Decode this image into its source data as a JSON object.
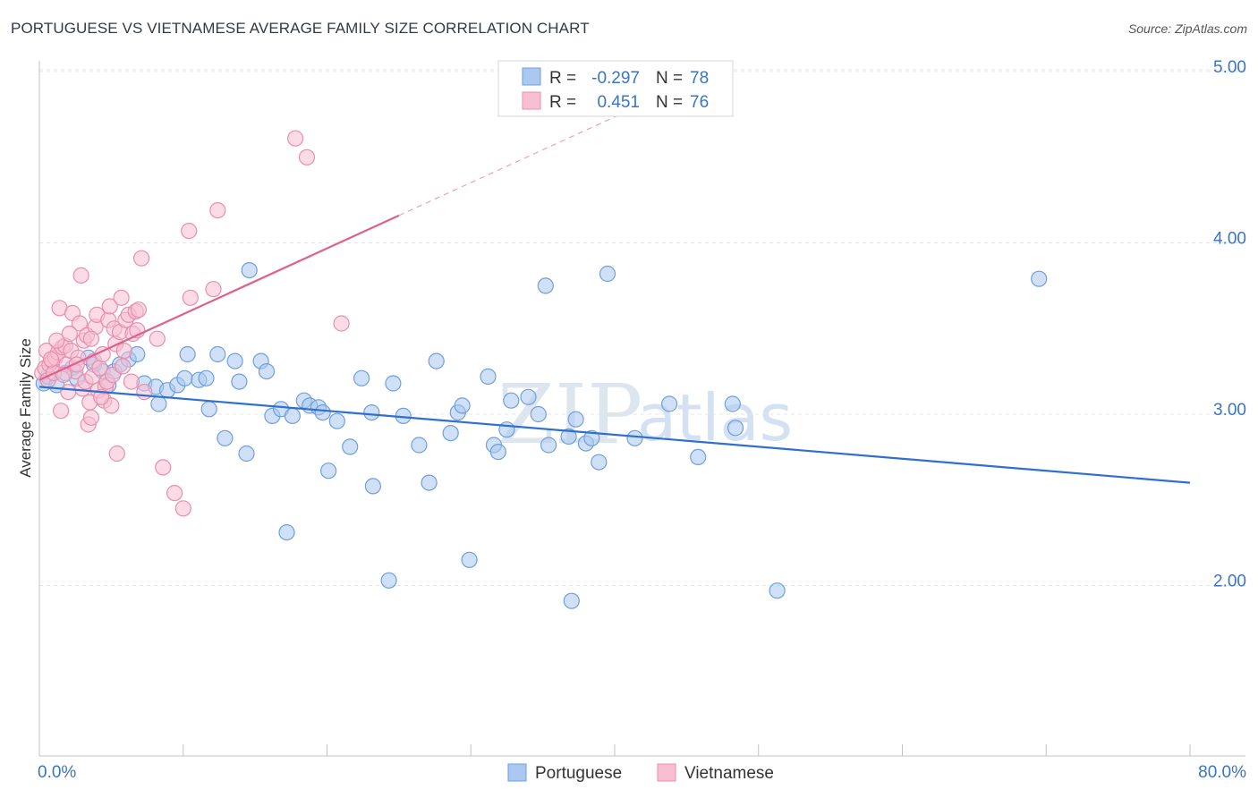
{
  "title": "PORTUGUESE VS VIETNAMESE AVERAGE FAMILY SIZE CORRELATION CHART",
  "source": "Source: ZipAtlas.com",
  "watermark": {
    "zip": "ZIP",
    "atlas": "atlas"
  },
  "legend": {
    "r_label": "R =",
    "n_label": "N =",
    "rows": [
      {
        "name": "Portuguese",
        "r": "-0.297",
        "n": "78",
        "fill": "#aac8f0",
        "stroke": "#6f9fdc"
      },
      {
        "name": "Vietnamese",
        "r": "0.451",
        "n": "76",
        "fill": "#f8bfd2",
        "stroke": "#e88fae"
      }
    ]
  },
  "chart_data": {
    "type": "scatter",
    "title": "PORTUGUESE VS VIETNAMESE AVERAGE FAMILY SIZE CORRELATION CHART",
    "xlabel": "",
    "ylabel": "Average Family Size",
    "xlim": [
      0,
      80
    ],
    "ylim": [
      1.0,
      5.15
    ],
    "x_tick_labels": [
      "0.0%",
      "80.0%"
    ],
    "y_ticks": [
      2.0,
      3.0,
      4.0,
      5.0
    ],
    "y_tick_labels": [
      "2.00",
      "3.00",
      "4.00",
      "5.00"
    ],
    "series": [
      {
        "name": "Portuguese",
        "color": "#6f9fdc",
        "fill": "#aac8f0",
        "trend": {
          "x0": 0,
          "y0": 3.16,
          "x1": 80,
          "y1": 2.6,
          "color": "#2f6fd0"
        },
        "points": [
          [
            0.3,
            3.18
          ],
          [
            0.6,
            3.22
          ],
          [
            1.2,
            3.17
          ],
          [
            1.8,
            3.24
          ],
          [
            2.3,
            3.27
          ],
          [
            2.6,
            3.21
          ],
          [
            3.4,
            3.33
          ],
          [
            3.8,
            3.29
          ],
          [
            4.4,
            3.25
          ],
          [
            4.8,
            3.17
          ],
          [
            5.2,
            3.25
          ],
          [
            5.6,
            3.29
          ],
          [
            6.2,
            3.32
          ],
          [
            6.8,
            3.35
          ],
          [
            7.3,
            3.18
          ],
          [
            8.1,
            3.16
          ],
          [
            8.3,
            3.06
          ],
          [
            8.9,
            3.14
          ],
          [
            9.6,
            3.17
          ],
          [
            10.1,
            3.21
          ],
          [
            10.3,
            3.35
          ],
          [
            11.1,
            3.2
          ],
          [
            11.6,
            3.21
          ],
          [
            11.8,
            3.03
          ],
          [
            12.4,
            3.35
          ],
          [
            12.9,
            2.86
          ],
          [
            13.6,
            3.31
          ],
          [
            13.9,
            3.19
          ],
          [
            14.4,
            2.77
          ],
          [
            14.6,
            3.84
          ],
          [
            15.4,
            3.31
          ],
          [
            15.8,
            3.25
          ],
          [
            16.2,
            2.99
          ],
          [
            16.8,
            3.03
          ],
          [
            17.2,
            2.31
          ],
          [
            17.6,
            2.99
          ],
          [
            18.4,
            3.08
          ],
          [
            18.8,
            3.05
          ],
          [
            19.4,
            3.04
          ],
          [
            19.7,
            3.01
          ],
          [
            20.1,
            2.67
          ],
          [
            20.7,
            2.96
          ],
          [
            21.6,
            2.81
          ],
          [
            22.4,
            3.21
          ],
          [
            23.1,
            3.01
          ],
          [
            23.2,
            2.58
          ],
          [
            24.3,
            2.03
          ],
          [
            24.6,
            3.18
          ],
          [
            25.3,
            2.99
          ],
          [
            26.4,
            2.82
          ],
          [
            27.1,
            2.6
          ],
          [
            27.6,
            3.31
          ],
          [
            28.6,
            2.89
          ],
          [
            29.1,
            3.01
          ],
          [
            29.4,
            3.05
          ],
          [
            29.9,
            2.15
          ],
          [
            31.2,
            3.22
          ],
          [
            31.6,
            2.82
          ],
          [
            31.9,
            2.78
          ],
          [
            32.5,
            2.91
          ],
          [
            32.8,
            3.08
          ],
          [
            34.0,
            3.1
          ],
          [
            34.7,
            3.0
          ],
          [
            35.2,
            3.75
          ],
          [
            35.4,
            2.82
          ],
          [
            36.8,
            2.87
          ],
          [
            37.0,
            1.91
          ],
          [
            37.3,
            2.97
          ],
          [
            38.0,
            2.83
          ],
          [
            38.4,
            2.86
          ],
          [
            38.9,
            2.72
          ],
          [
            39.5,
            3.82
          ],
          [
            41.4,
            2.86
          ],
          [
            43.8,
            3.06
          ],
          [
            45.8,
            2.75
          ],
          [
            48.2,
            3.06
          ],
          [
            48.4,
            2.92
          ],
          [
            51.3,
            1.97
          ],
          [
            69.5,
            3.79
          ]
        ]
      },
      {
        "name": "Vietnamese",
        "color": "#e88fae",
        "fill": "#f8bfd2",
        "trend": {
          "x0": 0,
          "y0": 3.2,
          "x1": 25,
          "y1": 4.16,
          "dash_x1": 43,
          "dash_y1": 4.85,
          "color": "#e0608c"
        },
        "points": [
          [
            0.2,
            3.24
          ],
          [
            0.4,
            3.27
          ],
          [
            0.5,
            3.37
          ],
          [
            0.6,
            3.2
          ],
          [
            0.7,
            3.29
          ],
          [
            0.9,
            3.31
          ],
          [
            1.0,
            3.24
          ],
          [
            1.1,
            3.33
          ],
          [
            1.3,
            3.36
          ],
          [
            1.4,
            3.62
          ],
          [
            1.5,
            3.02
          ],
          [
            1.6,
            3.39
          ],
          [
            1.8,
            3.4
          ],
          [
            1.9,
            3.29
          ],
          [
            2.0,
            3.13
          ],
          [
            2.2,
            3.37
          ],
          [
            2.3,
            3.59
          ],
          [
            2.5,
            3.25
          ],
          [
            2.7,
            3.33
          ],
          [
            2.8,
            3.53
          ],
          [
            2.9,
            3.81
          ],
          [
            3.0,
            3.15
          ],
          [
            3.1,
            3.43
          ],
          [
            3.2,
            3.19
          ],
          [
            3.3,
            3.46
          ],
          [
            3.4,
            2.94
          ],
          [
            3.5,
            3.07
          ],
          [
            3.6,
            2.98
          ],
          [
            3.7,
            3.22
          ],
          [
            3.8,
            3.31
          ],
          [
            3.9,
            3.51
          ],
          [
            4.0,
            3.58
          ],
          [
            4.1,
            3.14
          ],
          [
            4.2,
            3.27
          ],
          [
            4.4,
            3.35
          ],
          [
            4.5,
            3.08
          ],
          [
            4.6,
            3.16
          ],
          [
            4.7,
            3.19
          ],
          [
            4.8,
            3.55
          ],
          [
            4.9,
            3.63
          ],
          [
            5.0,
            3.05
          ],
          [
            5.1,
            3.23
          ],
          [
            5.2,
            3.5
          ],
          [
            5.3,
            3.41
          ],
          [
            5.4,
            2.77
          ],
          [
            5.6,
            3.48
          ],
          [
            5.7,
            3.68
          ],
          [
            5.8,
            3.28
          ],
          [
            6.0,
            3.55
          ],
          [
            6.2,
            3.58
          ],
          [
            6.4,
            3.19
          ],
          [
            6.5,
            3.47
          ],
          [
            6.7,
            3.6
          ],
          [
            6.9,
            3.61
          ],
          [
            7.1,
            3.91
          ],
          [
            7.3,
            3.13
          ],
          [
            8.2,
            3.44
          ],
          [
            8.6,
            2.69
          ],
          [
            9.4,
            2.54
          ],
          [
            10.0,
            2.45
          ],
          [
            10.4,
            4.07
          ],
          [
            10.5,
            3.68
          ],
          [
            12.1,
            3.73
          ],
          [
            12.4,
            4.19
          ],
          [
            17.8,
            4.61
          ],
          [
            18.6,
            4.5
          ],
          [
            21.0,
            3.53
          ],
          [
            5.9,
            3.37
          ],
          [
            2.1,
            3.47
          ],
          [
            1.2,
            3.43
          ],
          [
            0.8,
            3.32
          ],
          [
            4.3,
            3.1
          ],
          [
            3.6,
            3.44
          ],
          [
            2.6,
            3.29
          ],
          [
            1.7,
            3.23
          ],
          [
            6.8,
            3.49
          ]
        ]
      }
    ]
  }
}
